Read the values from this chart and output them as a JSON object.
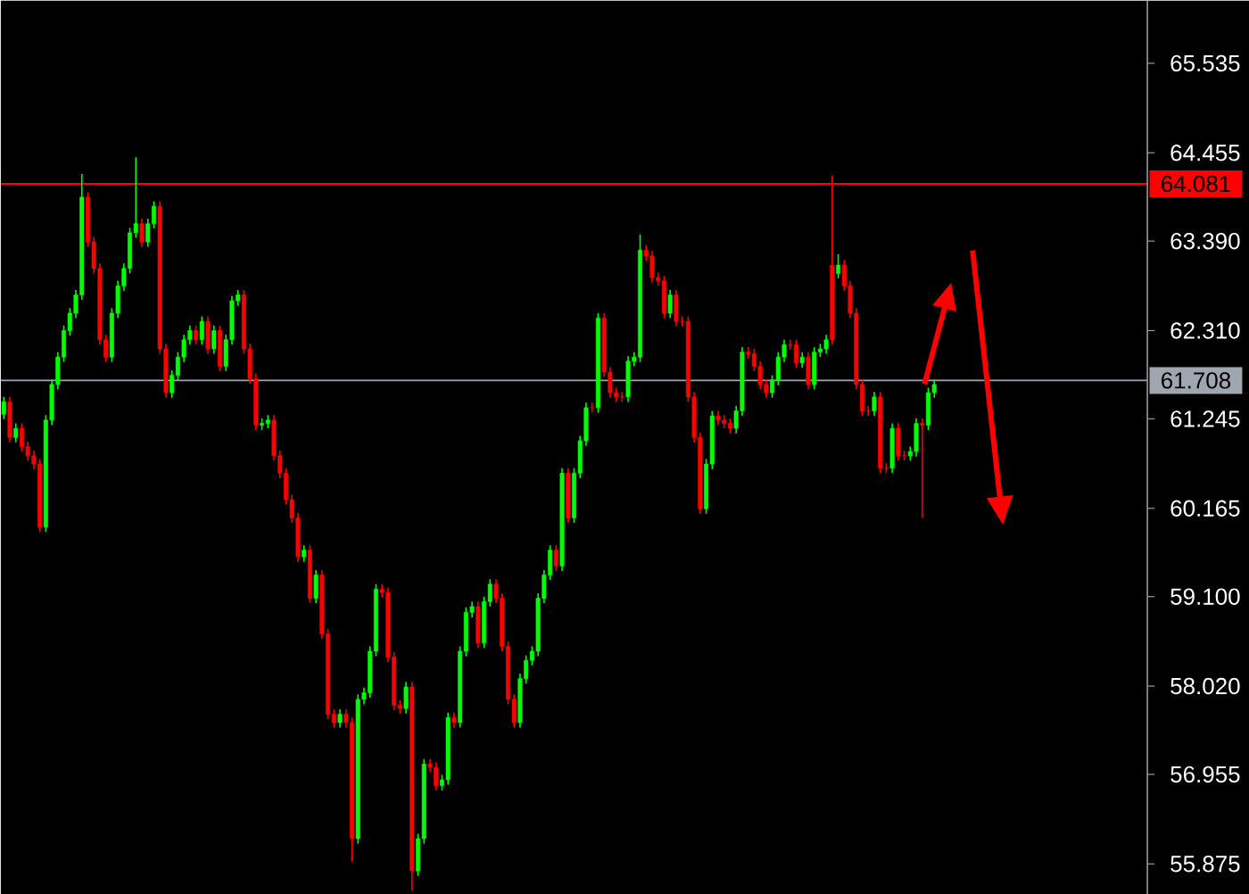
{
  "chart_data": {
    "type": "candlestick",
    "categories": [
      null,
      null,
      null,
      null,
      null,
      null,
      null,
      null,
      null,
      null,
      null,
      null,
      null,
      null,
      null,
      null,
      null,
      null,
      null,
      null,
      null,
      null,
      null,
      null,
      null,
      null,
      null,
      null,
      null,
      null,
      null,
      null,
      null,
      null,
      null,
      null,
      null,
      null,
      null,
      null,
      null,
      null,
      null,
      null,
      null,
      null,
      null,
      null,
      null,
      null,
      null,
      null,
      null,
      null,
      null,
      null,
      null,
      null,
      null,
      null,
      null,
      null,
      null,
      null,
      null,
      null,
      null,
      null,
      null,
      null,
      null,
      null,
      null,
      null,
      null,
      null,
      null,
      null,
      null,
      null,
      null,
      null,
      null,
      null,
      null,
      null,
      null,
      null,
      null,
      null,
      null,
      null,
      null,
      null,
      null,
      null,
      null,
      null,
      null,
      null,
      null,
      null,
      null,
      null,
      null,
      null,
      null,
      null,
      null,
      null,
      null,
      null,
      null,
      null,
      null,
      null,
      null,
      null,
      null,
      null,
      null,
      null,
      null,
      null,
      null,
      null,
      null,
      null,
      null,
      null,
      null,
      null,
      null,
      null,
      null,
      null,
      null,
      null,
      null,
      null,
      null,
      null,
      null,
      null,
      null,
      null,
      null,
      null,
      null,
      null,
      null,
      null,
      null,
      null,
      null,
      null,
      null,
      null,
      null,
      null,
      null,
      null,
      null,
      null,
      null,
      null,
      null,
      null,
      null,
      null,
      null,
      null,
      null,
      null,
      null,
      null,
      null,
      null,
      null,
      null,
      null,
      null,
      null,
      null,
      null,
      null,
      null,
      null,
      null,
      null,
      null
    ],
    "ohlc": [
      [
        61.3,
        61.51,
        61.24,
        61.45
      ],
      [
        61.45,
        61.51,
        60.96,
        61.02
      ],
      [
        61.02,
        61.19,
        60.96,
        61.13
      ],
      [
        61.13,
        61.19,
        60.85,
        60.91
      ],
      [
        60.91,
        60.97,
        60.74,
        60.8
      ],
      [
        60.8,
        60.86,
        60.64,
        60.7
      ],
      [
        60.7,
        60.76,
        59.88,
        59.94
      ],
      [
        59.94,
        61.29,
        59.88,
        61.23
      ],
      [
        61.23,
        61.72,
        61.17,
        61.66
      ],
      [
        61.66,
        62.05,
        61.6,
        61.99
      ],
      [
        61.99,
        62.37,
        61.93,
        62.31
      ],
      [
        62.31,
        62.58,
        62.25,
        62.52
      ],
      [
        62.52,
        62.8,
        62.46,
        62.74
      ],
      [
        62.74,
        64.2,
        62.68,
        63.92
      ],
      [
        63.92,
        63.98,
        63.32,
        63.38
      ],
      [
        63.38,
        63.44,
        63.0,
        63.06
      ],
      [
        63.06,
        63.12,
        62.14,
        62.2
      ],
      [
        62.2,
        62.26,
        61.93,
        61.99
      ],
      [
        61.99,
        62.58,
        61.93,
        62.52
      ],
      [
        62.52,
        62.91,
        62.46,
        62.85
      ],
      [
        62.85,
        63.12,
        62.79,
        63.06
      ],
      [
        63.06,
        63.55,
        63.0,
        63.49
      ],
      [
        63.49,
        64.4,
        63.43,
        63.6
      ],
      [
        63.6,
        63.66,
        63.32,
        63.38
      ],
      [
        63.38,
        63.66,
        63.32,
        63.6
      ],
      [
        63.6,
        63.87,
        63.54,
        63.81
      ],
      [
        63.81,
        63.87,
        62.03,
        62.09
      ],
      [
        62.09,
        62.15,
        61.5,
        61.56
      ],
      [
        61.56,
        61.83,
        61.5,
        61.77
      ],
      [
        61.77,
        62.05,
        61.71,
        61.99
      ],
      [
        61.99,
        62.26,
        61.93,
        62.2
      ],
      [
        62.2,
        62.37,
        62.14,
        62.31
      ],
      [
        62.31,
        62.37,
        62.14,
        62.2
      ],
      [
        62.2,
        62.48,
        62.14,
        62.42
      ],
      [
        62.42,
        62.48,
        62.03,
        62.09
      ],
      [
        62.09,
        62.37,
        62.03,
        62.31
      ],
      [
        62.31,
        62.37,
        61.82,
        61.88
      ],
      [
        61.88,
        62.26,
        61.82,
        62.2
      ],
      [
        62.2,
        62.73,
        62.14,
        62.67
      ],
      [
        62.67,
        62.8,
        62.61,
        62.74
      ],
      [
        62.74,
        62.8,
        62.03,
        62.09
      ],
      [
        62.09,
        62.15,
        61.67,
        61.73
      ],
      [
        61.73,
        61.79,
        61.11,
        61.17
      ],
      [
        61.17,
        61.25,
        61.11,
        61.19
      ],
      [
        61.19,
        61.29,
        61.13,
        61.23
      ],
      [
        61.23,
        61.29,
        60.74,
        60.8
      ],
      [
        60.8,
        60.86,
        60.53,
        60.59
      ],
      [
        60.59,
        60.65,
        60.21,
        60.27
      ],
      [
        60.27,
        60.33,
        59.99,
        60.05
      ],
      [
        60.05,
        60.11,
        59.52,
        59.58
      ],
      [
        59.58,
        59.72,
        59.52,
        59.66
      ],
      [
        59.66,
        59.72,
        59.02,
        59.08
      ],
      [
        59.08,
        59.42,
        59.02,
        59.36
      ],
      [
        59.36,
        59.42,
        58.59,
        58.65
      ],
      [
        58.65,
        58.71,
        57.62,
        57.68
      ],
      [
        57.68,
        57.74,
        57.52,
        57.58
      ],
      [
        57.58,
        57.74,
        57.52,
        57.68
      ],
      [
        57.68,
        57.74,
        57.52,
        57.58
      ],
      [
        57.58,
        57.64,
        55.9,
        56.18
      ],
      [
        56.18,
        57.92,
        56.12,
        57.86
      ],
      [
        57.86,
        58.0,
        57.8,
        57.94
      ],
      [
        57.94,
        58.5,
        57.88,
        58.44
      ],
      [
        58.44,
        59.25,
        58.38,
        59.19
      ],
      [
        59.19,
        59.25,
        59.09,
        59.15
      ],
      [
        59.15,
        59.21,
        58.31,
        58.37
      ],
      [
        58.37,
        58.43,
        57.73,
        57.79
      ],
      [
        57.79,
        57.85,
        57.69,
        57.75
      ],
      [
        57.75,
        58.07,
        57.69,
        58.01
      ],
      [
        58.01,
        58.07,
        55.55,
        55.79
      ],
      [
        55.79,
        56.24,
        55.73,
        56.18
      ],
      [
        56.18,
        57.14,
        56.12,
        57.08
      ],
      [
        57.08,
        57.14,
        56.98,
        57.04
      ],
      [
        57.04,
        57.1,
        56.76,
        56.82
      ],
      [
        56.82,
        56.95,
        56.76,
        56.89
      ],
      [
        56.89,
        57.7,
        56.83,
        57.64
      ],
      [
        57.64,
        57.7,
        57.52,
        57.58
      ],
      [
        57.58,
        58.5,
        57.52,
        58.44
      ],
      [
        58.44,
        58.97,
        58.38,
        58.91
      ],
      [
        58.91,
        59.04,
        58.85,
        58.98
      ],
      [
        58.98,
        59.04,
        58.48,
        58.54
      ],
      [
        58.54,
        59.1,
        58.48,
        59.04
      ],
      [
        59.04,
        59.31,
        58.98,
        59.25
      ],
      [
        59.25,
        59.31,
        59.02,
        59.08
      ],
      [
        59.08,
        59.14,
        58.44,
        58.5
      ],
      [
        58.5,
        58.56,
        57.8,
        57.86
      ],
      [
        57.86,
        57.92,
        57.52,
        57.58
      ],
      [
        57.58,
        58.17,
        57.52,
        58.11
      ],
      [
        58.11,
        58.39,
        58.05,
        58.33
      ],
      [
        58.33,
        58.5,
        58.27,
        58.44
      ],
      [
        58.44,
        59.14,
        58.38,
        59.08
      ],
      [
        59.08,
        59.42,
        59.02,
        59.36
      ],
      [
        59.36,
        59.72,
        59.3,
        59.66
      ],
      [
        59.66,
        59.72,
        59.41,
        59.47
      ],
      [
        59.47,
        60.65,
        59.41,
        60.59
      ],
      [
        60.59,
        60.65,
        59.99,
        60.05
      ],
      [
        60.05,
        60.65,
        59.99,
        60.59
      ],
      [
        60.59,
        61.04,
        60.53,
        60.98
      ],
      [
        60.98,
        61.44,
        60.92,
        61.38
      ],
      [
        61.38,
        61.44,
        61.32,
        61.38
      ],
      [
        61.38,
        62.52,
        61.32,
        62.46
      ],
      [
        62.46,
        62.52,
        61.75,
        61.81
      ],
      [
        61.81,
        61.87,
        61.5,
        61.56
      ],
      [
        61.56,
        61.62,
        61.45,
        61.51
      ],
      [
        61.51,
        61.57,
        61.45,
        61.51
      ],
      [
        61.51,
        62.0,
        61.45,
        61.94
      ],
      [
        61.94,
        62.05,
        61.88,
        61.99
      ],
      [
        61.99,
        63.47,
        61.93,
        63.28
      ],
      [
        63.28,
        63.34,
        63.15,
        63.21
      ],
      [
        63.21,
        63.27,
        62.89,
        62.95
      ],
      [
        62.95,
        63.01,
        62.85,
        62.91
      ],
      [
        62.91,
        62.97,
        62.46,
        62.52
      ],
      [
        62.52,
        62.8,
        62.46,
        62.74
      ],
      [
        62.74,
        62.8,
        62.36,
        62.42
      ],
      [
        62.42,
        62.48,
        62.36,
        62.42
      ],
      [
        62.42,
        62.48,
        61.45,
        61.51
      ],
      [
        61.51,
        61.57,
        60.96,
        61.02
      ],
      [
        61.02,
        61.08,
        60.1,
        60.16
      ],
      [
        60.16,
        60.76,
        60.1,
        60.7
      ],
      [
        60.7,
        61.34,
        60.64,
        61.28
      ],
      [
        61.28,
        61.34,
        61.17,
        61.23
      ],
      [
        61.23,
        61.29,
        61.13,
        61.19
      ],
      [
        61.19,
        61.25,
        61.07,
        61.13
      ],
      [
        61.13,
        61.4,
        61.07,
        61.34
      ],
      [
        61.34,
        62.11,
        61.28,
        62.05
      ],
      [
        62.05,
        62.11,
        61.97,
        62.03
      ],
      [
        62.03,
        62.09,
        61.82,
        61.88
      ],
      [
        61.88,
        61.94,
        61.6,
        61.66
      ],
      [
        61.66,
        61.72,
        61.5,
        61.56
      ],
      [
        61.56,
        61.77,
        61.5,
        61.71
      ],
      [
        61.71,
        62.05,
        61.65,
        61.99
      ],
      [
        61.99,
        62.2,
        61.93,
        62.14
      ],
      [
        62.14,
        62.2,
        62.08,
        62.14
      ],
      [
        62.14,
        62.2,
        61.86,
        61.92
      ],
      [
        61.92,
        62.05,
        61.86,
        61.99
      ],
      [
        61.99,
        62.05,
        61.6,
        61.66
      ],
      [
        61.66,
        62.11,
        61.6,
        62.05
      ],
      [
        62.05,
        62.15,
        61.99,
        62.09
      ],
      [
        62.09,
        62.26,
        62.03,
        62.2
      ],
      [
        63.1,
        64.18,
        62.14,
        62.2
      ],
      [
        63.0,
        63.23,
        62.94,
        63.1
      ],
      [
        63.1,
        63.16,
        62.79,
        62.85
      ],
      [
        62.85,
        62.91,
        62.46,
        62.52
      ],
      [
        62.52,
        62.58,
        61.6,
        61.66
      ],
      [
        61.66,
        61.72,
        61.28,
        61.34
      ],
      [
        61.34,
        61.4,
        61.28,
        61.34
      ],
      [
        61.34,
        61.57,
        61.28,
        61.51
      ],
      [
        61.51,
        61.57,
        60.59,
        60.65
      ],
      [
        60.65,
        60.71,
        60.59,
        60.65
      ],
      [
        60.65,
        61.19,
        60.59,
        61.13
      ],
      [
        61.13,
        61.19,
        60.74,
        60.8
      ],
      [
        60.8,
        60.86,
        60.74,
        60.8
      ],
      [
        60.8,
        60.91,
        60.74,
        60.85
      ],
      [
        60.85,
        61.25,
        60.79,
        61.19
      ],
      [
        61.19,
        61.25,
        60.05,
        61.17
      ],
      [
        61.17,
        61.62,
        61.11,
        61.56
      ],
      [
        61.56,
        61.72,
        61.5,
        61.66
      ],
      null,
      null,
      null,
      null,
      null,
      null,
      null,
      null,
      null,
      null,
      null,
      null,
      null,
      null,
      null,
      null,
      null,
      null,
      null,
      null,
      null,
      null,
      null,
      null,
      null,
      null,
      null,
      null,
      null,
      null,
      null,
      null,
      null,
      null,
      null
    ],
    "colors": [
      "#00ff00",
      "#ff0000",
      "#00ff00",
      "#ff0000",
      "#ff0000",
      "#ff0000",
      "#ff0000",
      "#00ff00",
      "#00ff00",
      "#00ff00",
      "#00ff00",
      "#00ff00",
      "#00ff00",
      "#00ff00",
      "#ff0000",
      "#ff0000",
      "#ff0000",
      "#ff0000",
      "#00ff00",
      "#00ff00",
      "#00ff00",
      "#00ff00",
      "#00ff00",
      "#ff0000",
      "#00ff00",
      "#00ff00",
      "#ff0000",
      "#ff0000",
      "#00ff00",
      "#00ff00",
      "#00ff00",
      "#00ff00",
      "#ff0000",
      "#00ff00",
      "#ff0000",
      "#00ff00",
      "#ff0000",
      "#00ff00",
      "#00ff00",
      "#00ff00",
      "#ff0000",
      "#ff0000",
      "#ff0000",
      "#00ff00",
      "#00ff00",
      "#ff0000",
      "#ff0000",
      "#ff0000",
      "#ff0000",
      "#ff0000",
      "#00ff00",
      "#ff0000",
      "#00ff00",
      "#ff0000",
      "#ff0000",
      "#ff0000",
      "#00ff00",
      "#ff0000",
      "#ff0000",
      "#00ff00",
      "#00ff00",
      "#00ff00",
      "#00ff00",
      "#ff0000",
      "#ff0000",
      "#ff0000",
      "#ff0000",
      "#00ff00",
      "#ff0000",
      "#00ff00",
      "#00ff00",
      "#ff0000",
      "#ff0000",
      "#00ff00",
      "#00ff00",
      "#ff0000",
      "#00ff00",
      "#00ff00",
      "#00ff00",
      "#ff0000",
      "#00ff00",
      "#00ff00",
      "#ff0000",
      "#ff0000",
      "#ff0000",
      "#ff0000",
      "#00ff00",
      "#00ff00",
      "#00ff00",
      "#00ff00",
      "#00ff00",
      "#00ff00",
      "#ff0000",
      "#00ff00",
      "#ff0000",
      "#00ff00",
      "#00ff00",
      "#00ff00",
      "#ff0000",
      "#00ff00",
      "#ff0000",
      "#ff0000",
      "#ff0000",
      "#ff0000",
      "#00ff00",
      "#00ff00",
      "#00ff00",
      "#ff0000",
      "#ff0000",
      "#ff0000",
      "#ff0000",
      "#00ff00",
      "#ff0000",
      "#ff0000",
      "#ff0000",
      "#ff0000",
      "#ff0000",
      "#00ff00",
      "#00ff00",
      "#ff0000",
      "#ff0000",
      "#ff0000",
      "#00ff00",
      "#00ff00",
      "#ff0000",
      "#ff0000",
      "#ff0000",
      "#ff0000",
      "#00ff00",
      "#00ff00",
      "#00ff00",
      "#ff0000",
      "#ff0000",
      "#00ff00",
      "#ff0000",
      "#00ff00",
      "#00ff00",
      "#00ff00",
      "#ff0000",
      "#00ff00",
      "#ff0000",
      "#ff0000",
      "#ff0000",
      "#ff0000",
      "#ff0000",
      "#00ff00",
      "#ff0000",
      "#ff0000",
      "#00ff00",
      "#ff0000",
      "#ff0000",
      "#00ff00",
      "#00ff00",
      "#ff0000",
      "#00ff00",
      "#00ff00",
      null,
      null,
      null,
      null,
      null,
      null,
      null,
      null,
      null,
      null,
      null,
      null,
      null,
      null,
      null,
      null,
      null,
      null,
      null,
      null,
      null,
      null,
      null,
      null,
      null,
      null,
      null,
      null,
      null,
      null,
      null,
      null,
      null,
      null,
      null
    ],
    "ylim": [
      55.51,
      66.29
    ],
    "yticks": [
      55.875,
      56.955,
      {
        "value": 58.02,
        "label": "58.020"
      },
      {
        "value": 59.1,
        "label": "59.100"
      },
      60.165,
      61.245,
      {
        "value": 62.31,
        "label": "62.310"
      },
      {
        "value": 63.39,
        "label": "63.390"
      },
      64.455,
      65.535
    ],
    "tick_labels": "y",
    "ref_lines": [
      {
        "axis": "y",
        "value": 64.081,
        "label": "64.081",
        "color": "#ff0000"
      },
      {
        "axis": "y",
        "value": 61.708,
        "label": "61.708",
        "color": "#a0a6b0"
      }
    ]
  }
}
